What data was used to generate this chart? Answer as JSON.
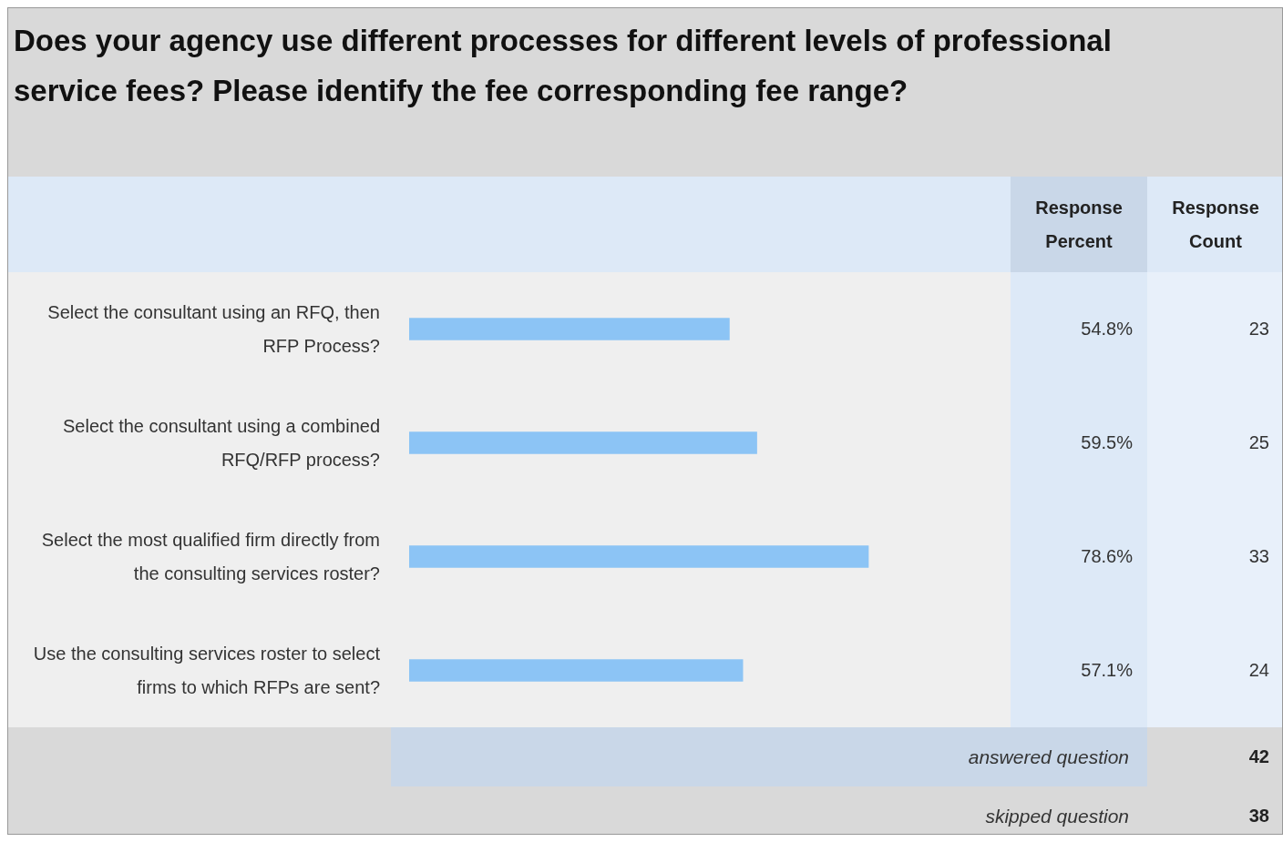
{
  "chart_data": {
    "type": "bar",
    "orientation": "horizontal",
    "title": "Does your agency use different processes for different levels of professional service fees? Please identify the fee corresponding fee range?",
    "categories": [
      "Select the consultant using an RFQ, then RFP Process?",
      "Select the consultant using a combined RFQ/RFP process?",
      "Select the most qualified firm directly from the consulting services roster?",
      "Use the consulting services roster to select firms to which RFPs are sent?"
    ],
    "series": [
      {
        "name": "Response Percent",
        "color": "#8cc4f5",
        "values": [
          54.8,
          59.5,
          78.6,
          57.1
        ],
        "value_labels": [
          "54.8%",
          "59.5%",
          "78.6%",
          "57.1%"
        ]
      }
    ],
    "legend": false,
    "annotations": [
      "Response Count",
      "23",
      "25",
      "33",
      "24",
      "answered question",
      "42",
      "skipped question",
      "38"
    ]
  }
}
